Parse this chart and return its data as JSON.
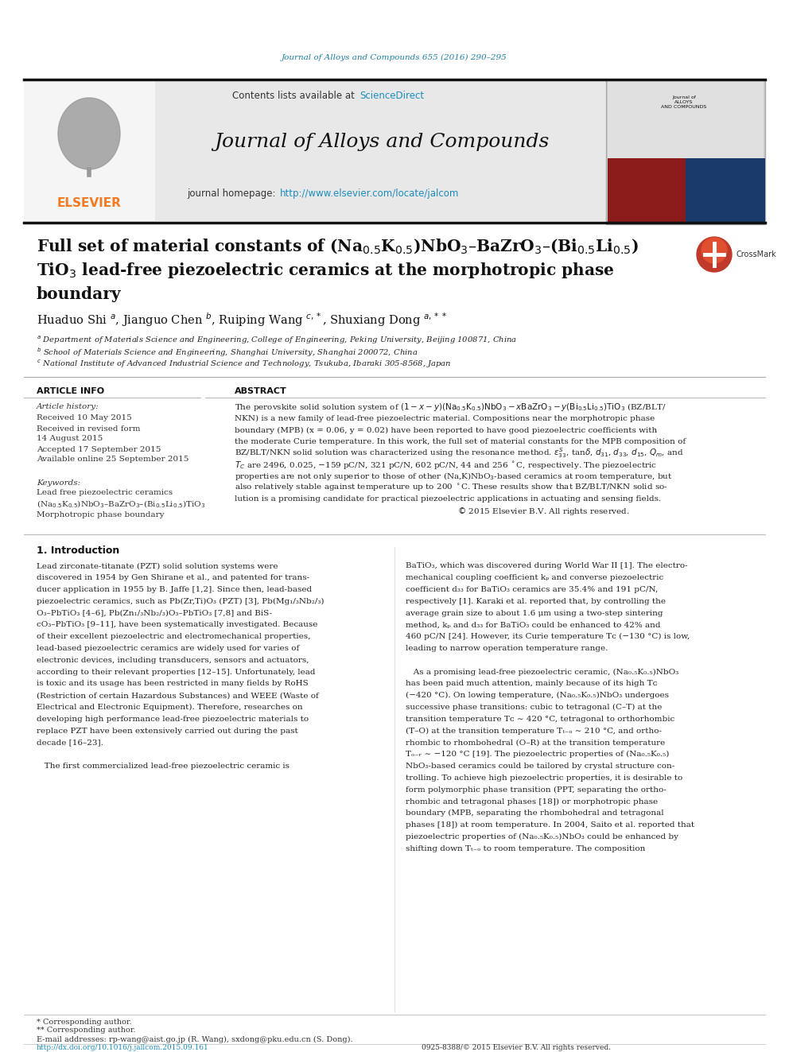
{
  "bg_color": "#ffffff",
  "journal_ref_color": "#1a7fa8",
  "journal_ref_text": "Journal of Alloys and Compounds 655 (2016) 290–295",
  "sciencedirect_color": "#1a8dc0",
  "journal_name": "Journal of Alloys and Compounds",
  "journal_url": "http://www.elsevier.com/locate/jalcom",
  "url_color": "#1a8dc0",
  "elsevier_color": "#f47920",
  "article_info_title": "ARTICLE INFO",
  "abstract_title": "ABSTRACT",
  "article_history_label": "Article history:",
  "received_label": "Received 10 May 2015",
  "revised_label": "Received in revised form",
  "revised_date": "14 August 2015",
  "accepted_label": "Accepted 17 September 2015",
  "available_label": "Available online 25 September 2015",
  "keywords_label": "Keywords:",
  "kw1": "Lead free piezoelectric ceramics",
  "kw3": "Morphotropic phase boundary",
  "intro_title": "1. Introduction",
  "footnote_corresponding": "* Corresponding author.",
  "footnote_corresponding2": "** Corresponding author.",
  "footnote_email": "E-mail addresses: rp-wang@aist.go.jp (R. Wang), sxdong@pku.edu.cn (S. Dong).",
  "doi_text": "http://dx.doi.org/10.1016/j.jallcom.2015.09.161",
  "issn_text": "0925-8388/© 2015 Elsevier B.V. All rights reserved."
}
